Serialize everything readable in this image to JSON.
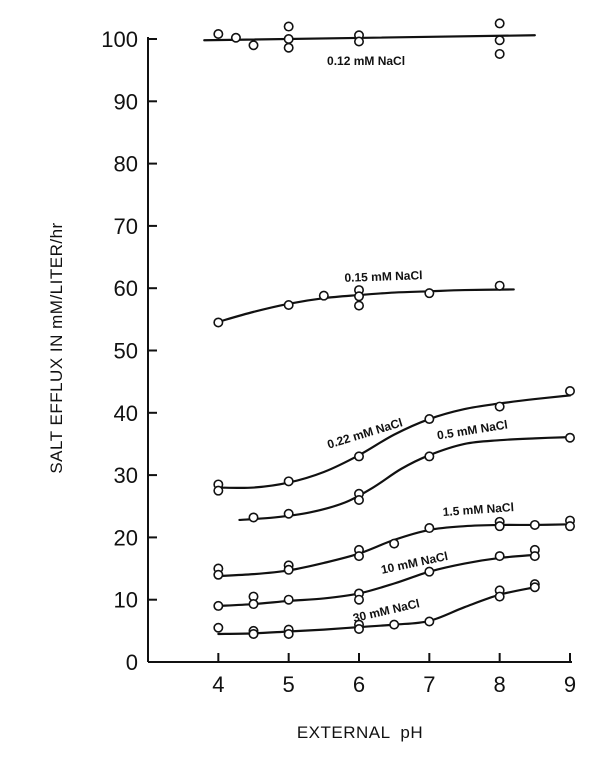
{
  "chart_data": {
    "type": "line",
    "xlabel": "EXTERNAL  pH",
    "ylabel": "SALT EFFLUX IN mM/LITER/hr",
    "xlim": [
      3,
      9
    ],
    "ylim": [
      0,
      100
    ],
    "xticks": [
      4,
      5,
      6,
      7,
      8,
      9
    ],
    "yticks": [
      0,
      10,
      20,
      30,
      40,
      50,
      60,
      70,
      80,
      90,
      100
    ],
    "grid": false,
    "series": [
      {
        "name": "0.12 mM NaCl",
        "points": [
          [
            4.0,
            100.8
          ],
          [
            4.25,
            100.2
          ],
          [
            4.5,
            99.0
          ],
          [
            5.0,
            102.0
          ],
          [
            5.0,
            100.0
          ],
          [
            5.0,
            98.6
          ],
          [
            6.0,
            100.6
          ],
          [
            6.0,
            99.6
          ],
          [
            8.0,
            102.5
          ],
          [
            8.0,
            99.8
          ],
          [
            8.0,
            97.6
          ]
        ],
        "curve": [
          [
            3.8,
            99.8
          ],
          [
            8.5,
            100.6
          ]
        ]
      },
      {
        "name": "0.15 mM NaCl",
        "points": [
          [
            4.0,
            54.5
          ],
          [
            5.0,
            57.3
          ],
          [
            5.5,
            58.8
          ],
          [
            6.0,
            59.7
          ],
          [
            6.0,
            58.7
          ],
          [
            6.0,
            57.2
          ],
          [
            7.0,
            59.2
          ],
          [
            8.0,
            60.4
          ]
        ],
        "curve": [
          [
            4.0,
            54.6
          ],
          [
            4.5,
            56.2
          ],
          [
            5.0,
            57.5
          ],
          [
            5.5,
            58.4
          ],
          [
            6.0,
            58.9
          ],
          [
            6.5,
            59.3
          ],
          [
            7.0,
            59.5
          ],
          [
            7.5,
            59.7
          ],
          [
            8.2,
            59.8
          ]
        ]
      },
      {
        "name": "0.22 mM NaCl",
        "points": [
          [
            4.0,
            28.5
          ],
          [
            4.0,
            27.5
          ],
          [
            5.0,
            29.0
          ],
          [
            6.0,
            33.0
          ],
          [
            7.0,
            39.0
          ],
          [
            8.0,
            41.0
          ],
          [
            9.0,
            43.5
          ]
        ],
        "curve": [
          [
            4.0,
            28.0
          ],
          [
            4.5,
            28.0
          ],
          [
            5.0,
            28.8
          ],
          [
            5.5,
            30.5
          ],
          [
            6.0,
            33.2
          ],
          [
            6.5,
            36.5
          ],
          [
            7.0,
            39.0
          ],
          [
            7.5,
            40.6
          ],
          [
            8.0,
            41.5
          ],
          [
            8.5,
            42.2
          ],
          [
            9.0,
            42.8
          ]
        ]
      },
      {
        "name": "0.5 mM NaCl",
        "points": [
          [
            4.5,
            23.2
          ],
          [
            5.0,
            23.8
          ],
          [
            6.0,
            27.0
          ],
          [
            6.0,
            26.0
          ],
          [
            7.0,
            33.0
          ],
          [
            9.0,
            36.0
          ]
        ],
        "curve": [
          [
            4.3,
            22.8
          ],
          [
            4.8,
            23.2
          ],
          [
            5.3,
            24.0
          ],
          [
            5.8,
            25.6
          ],
          [
            6.2,
            28.0
          ],
          [
            6.6,
            31.0
          ],
          [
            7.0,
            33.2
          ],
          [
            7.5,
            35.0
          ],
          [
            8.0,
            35.6
          ],
          [
            8.5,
            35.9
          ],
          [
            9.0,
            36.1
          ]
        ]
      },
      {
        "name": "1.5 mM NaCl",
        "points": [
          [
            4.0,
            15.0
          ],
          [
            4.0,
            14.0
          ],
          [
            5.0,
            15.5
          ],
          [
            5.0,
            14.8
          ],
          [
            6.0,
            18.0
          ],
          [
            6.0,
            17.0
          ],
          [
            6.5,
            19.0
          ],
          [
            7.0,
            21.5
          ],
          [
            8.0,
            22.5
          ],
          [
            8.0,
            21.8
          ],
          [
            8.5,
            22.0
          ],
          [
            9.0,
            22.7
          ],
          [
            9.0,
            21.8
          ]
        ],
        "curve": [
          [
            4.0,
            13.8
          ],
          [
            4.5,
            14.1
          ],
          [
            5.0,
            14.7
          ],
          [
            5.5,
            15.9
          ],
          [
            6.0,
            17.4
          ],
          [
            6.5,
            19.6
          ],
          [
            7.0,
            21.2
          ],
          [
            7.5,
            21.8
          ],
          [
            8.0,
            22.0
          ],
          [
            8.5,
            22.0
          ],
          [
            9.0,
            22.1
          ]
        ]
      },
      {
        "name": "10 mM NaCl",
        "points": [
          [
            4.0,
            9.0
          ],
          [
            4.5,
            10.5
          ],
          [
            4.5,
            9.3
          ],
          [
            5.0,
            10.0
          ],
          [
            6.0,
            11.0
          ],
          [
            6.0,
            10.0
          ],
          [
            7.0,
            14.5
          ],
          [
            8.0,
            17.0
          ],
          [
            8.5,
            18.0
          ],
          [
            8.5,
            17.0
          ]
        ],
        "curve": [
          [
            4.0,
            9.0
          ],
          [
            4.5,
            9.3
          ],
          [
            5.0,
            9.8
          ],
          [
            5.5,
            10.2
          ],
          [
            6.0,
            11.0
          ],
          [
            6.5,
            12.6
          ],
          [
            7.0,
            14.5
          ],
          [
            7.5,
            15.8
          ],
          [
            8.0,
            16.7
          ],
          [
            8.5,
            17.2
          ]
        ]
      },
      {
        "name": "30 mM NaCl",
        "points": [
          [
            4.0,
            5.5
          ],
          [
            4.5,
            5.0
          ],
          [
            4.5,
            4.5
          ],
          [
            5.0,
            5.2
          ],
          [
            5.0,
            4.5
          ],
          [
            6.0,
            6.0
          ],
          [
            6.0,
            5.3
          ],
          [
            6.5,
            6.0
          ],
          [
            7.0,
            6.5
          ],
          [
            8.0,
            11.5
          ],
          [
            8.0,
            10.5
          ],
          [
            8.5,
            12.5
          ],
          [
            8.5,
            12.0
          ]
        ],
        "curve": [
          [
            4.0,
            4.5
          ],
          [
            4.5,
            4.6
          ],
          [
            5.0,
            4.9
          ],
          [
            5.5,
            5.2
          ],
          [
            6.0,
            5.6
          ],
          [
            6.5,
            6.0
          ],
          [
            7.0,
            6.6
          ],
          [
            7.5,
            8.8
          ],
          [
            8.0,
            10.8
          ],
          [
            8.5,
            12.0
          ]
        ]
      }
    ]
  }
}
